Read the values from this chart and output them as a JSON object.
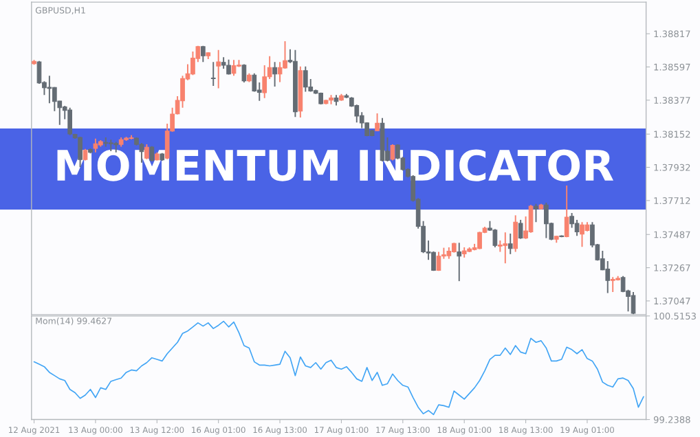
{
  "chart_data": [
    {
      "type": "candlestick",
      "title": "MOMENTUM INDICATOR",
      "annotations": [
        "GBPUSD,H1"
      ],
      "categories": [
        null,
        null,
        null,
        null,
        null,
        null,
        null,
        null,
        null,
        null,
        null,
        null,
        null,
        null,
        null,
        null,
        null,
        null,
        null,
        null,
        null,
        null,
        null,
        null,
        null,
        null,
        null,
        null,
        null,
        null,
        null,
        null,
        null,
        null,
        null,
        null,
        null,
        null,
        null,
        null,
        null,
        null,
        null,
        null,
        null,
        null,
        null,
        null,
        null,
        null,
        null,
        null,
        null,
        null,
        null,
        null,
        null,
        null,
        null,
        null,
        null,
        null,
        null,
        null,
        null,
        null,
        null,
        null,
        null,
        null,
        null,
        null,
        null,
        null,
        null,
        null,
        null,
        null,
        null,
        null,
        null,
        null,
        null,
        null,
        null,
        null,
        null,
        null,
        null,
        null,
        null,
        null,
        null,
        null,
        null,
        null,
        null,
        null,
        null,
        null,
        null,
        null,
        null,
        null,
        null,
        null,
        null,
        null,
        null,
        null,
        null,
        null,
        null,
        null,
        null,
        null,
        null,
        null,
        null,
        null
      ],
      "ohlc": [
        [
          1.38618,
          1.38643,
          1.38612,
          1.38634
        ],
        [
          1.38631,
          1.38637,
          1.38485,
          1.38491
        ],
        [
          1.38494,
          1.38502,
          1.38411,
          1.38459
        ],
        [
          1.38462,
          1.38539,
          1.38357,
          1.38455
        ],
        [
          1.38461,
          1.38464,
          1.38304,
          1.38368
        ],
        [
          1.38371,
          1.38373,
          1.38213,
          1.38327
        ],
        [
          1.38332,
          1.38339,
          1.38251,
          1.38309
        ],
        [
          1.38312,
          1.38327,
          1.38145,
          1.38153
        ],
        [
          1.3815,
          1.38154,
          1.38121,
          1.38127
        ],
        [
          1.3813,
          1.38135,
          1.37933,
          1.37983
        ],
        [
          1.37983,
          1.38054,
          1.37978,
          1.38044
        ],
        [
          1.3805,
          1.38057,
          1.38024,
          1.38031
        ],
        [
          1.38057,
          1.38122,
          1.38031,
          1.38088
        ],
        [
          1.3808,
          1.38112,
          1.38069,
          1.38103
        ],
        [
          1.38097,
          1.3813,
          1.38069,
          1.38091
        ],
        [
          1.38094,
          1.38115,
          1.38039,
          1.38088
        ],
        [
          1.3809,
          1.381,
          1.38031,
          1.38081
        ],
        [
          1.38084,
          1.3813,
          1.38069,
          1.38115
        ],
        [
          1.38115,
          1.38133,
          1.38107,
          1.38125
        ],
        [
          1.38124,
          1.38145,
          1.38118,
          1.38128
        ],
        [
          1.38125,
          1.3813,
          1.38077,
          1.38084
        ],
        [
          1.38084,
          1.38092,
          1.37963,
          1.38036
        ],
        [
          1.37993,
          1.38084,
          1.37986,
          1.38065
        ],
        [
          1.38066,
          1.38072,
          1.37971,
          1.37978
        ],
        [
          1.37981,
          1.38031,
          1.37978,
          1.38021
        ],
        [
          1.38021,
          1.38027,
          1.37975,
          1.37981
        ],
        [
          1.37993,
          1.38221,
          1.37986,
          1.38172
        ],
        [
          1.38172,
          1.38327,
          1.38168,
          1.38285
        ],
        [
          1.38286,
          1.38403,
          1.38282,
          1.38376
        ],
        [
          1.38373,
          1.38539,
          1.38327,
          1.3852
        ],
        [
          1.38517,
          1.38615,
          1.38509,
          1.38552
        ],
        [
          1.3855,
          1.38699,
          1.38543,
          1.38656
        ],
        [
          1.38653,
          1.38737,
          1.3863,
          1.38732
        ],
        [
          1.38732,
          1.38737,
          1.3863,
          1.38671
        ],
        [
          1.38671,
          1.38694,
          1.38649,
          1.38691
        ],
        [
          1.38524,
          1.3863,
          1.38471,
          1.3852
        ],
        [
          1.38603,
          1.38709,
          1.38456,
          1.38631
        ],
        [
          1.38627,
          1.38661,
          1.38585,
          1.38608
        ],
        [
          1.38608,
          1.38646,
          1.38547,
          1.3855
        ],
        [
          1.38555,
          1.38643,
          1.38539,
          1.38605
        ],
        [
          1.38603,
          1.38643,
          1.38597,
          1.38609
        ],
        [
          1.38609,
          1.38615,
          1.38494,
          1.38505
        ],
        [
          1.38505,
          1.38555,
          1.38497,
          1.38543
        ],
        [
          1.38543,
          1.38555,
          1.38433,
          1.38438
        ],
        [
          1.38444,
          1.38494,
          1.38373,
          1.38429
        ],
        [
          1.38426,
          1.38608,
          1.38391,
          1.38532
        ],
        [
          1.38532,
          1.38668,
          1.38517,
          1.38593
        ],
        [
          1.38593,
          1.3863,
          1.38467,
          1.3855
        ],
        [
          1.3855,
          1.3863,
          1.38497,
          1.38593
        ],
        [
          1.3859,
          1.38767,
          1.38585,
          1.38638
        ],
        [
          1.38641,
          1.38714,
          1.38623,
          1.38631
        ],
        [
          1.38634,
          1.38709,
          1.38266,
          1.383
        ],
        [
          1.38304,
          1.386,
          1.38262,
          1.38573
        ],
        [
          1.38573,
          1.386,
          1.38433,
          1.38464
        ],
        [
          1.38464,
          1.38517,
          1.38433,
          1.38438
        ],
        [
          1.38441,
          1.38446,
          1.38418,
          1.38423
        ],
        [
          1.38423,
          1.38427,
          1.38348,
          1.38353
        ],
        [
          1.38354,
          1.38379,
          1.3835,
          1.38376
        ],
        [
          1.38377,
          1.38411,
          1.3835,
          1.38392
        ],
        [
          1.38392,
          1.38411,
          1.38342,
          1.38368
        ],
        [
          1.38377,
          1.38418,
          1.38373,
          1.38406
        ],
        [
          1.38406,
          1.38418,
          1.38391,
          1.38395
        ],
        [
          1.38392,
          1.38397,
          1.38333,
          1.38338
        ],
        [
          1.38342,
          1.38347,
          1.38229,
          1.38271
        ],
        [
          1.38274,
          1.38297,
          1.38191,
          1.38226
        ],
        [
          1.38226,
          1.3823,
          1.38138,
          1.38142
        ],
        [
          1.38175,
          1.3818,
          1.38138,
          1.38142
        ],
        [
          1.38175,
          1.38289,
          1.38171,
          1.38224
        ],
        [
          1.38224,
          1.38259,
          1.37971,
          1.37978
        ],
        [
          1.38039,
          1.3813,
          1.37971,
          1.37978
        ],
        [
          1.37986,
          1.38084,
          1.37978,
          1.38077
        ],
        [
          1.3808,
          1.38084,
          1.37986,
          1.37993
        ],
        [
          1.37993,
          1.38001,
          1.3791,
          1.37918
        ],
        [
          1.37918,
          1.37925,
          1.37865,
          1.37872
        ],
        [
          1.37872,
          1.3788,
          1.37705,
          1.37713
        ],
        [
          1.3772,
          1.37728,
          1.37526,
          1.37541
        ],
        [
          1.37541,
          1.37576,
          1.37364,
          1.37372
        ],
        [
          1.37372,
          1.37447,
          1.37319,
          1.37364
        ],
        [
          1.37369,
          1.37375,
          1.37246,
          1.3725
        ],
        [
          1.3725,
          1.37372,
          1.37246,
          1.37344
        ],
        [
          1.37344,
          1.37399,
          1.37326,
          1.37352
        ],
        [
          1.37346,
          1.37402,
          1.37326,
          1.37376
        ],
        [
          1.37372,
          1.37432,
          1.37367,
          1.37428
        ],
        [
          1.37372,
          1.37432,
          1.37178,
          1.37344
        ],
        [
          1.37359,
          1.37402,
          1.37334,
          1.37379
        ],
        [
          1.37375,
          1.37402,
          1.3737,
          1.37391
        ],
        [
          1.37387,
          1.37425,
          1.37382,
          1.37399
        ],
        [
          1.37394,
          1.37505,
          1.3739,
          1.37501
        ],
        [
          1.37501,
          1.37538,
          1.37496,
          1.37529
        ],
        [
          1.37529,
          1.37576,
          1.37511,
          1.37516
        ],
        [
          1.37516,
          1.37523,
          1.37402,
          1.37414
        ],
        [
          1.3741,
          1.37447,
          1.37372,
          1.37417
        ],
        [
          1.37414,
          1.37501,
          1.37296,
          1.37425
        ],
        [
          1.37425,
          1.37493,
          1.37357,
          1.37394
        ],
        [
          1.37394,
          1.37614,
          1.37372,
          1.37569
        ],
        [
          1.37561,
          1.37584,
          1.37458,
          1.37463
        ],
        [
          1.37463,
          1.37607,
          1.37458,
          1.37511
        ],
        [
          1.37504,
          1.37683,
          1.37499,
          1.37675
        ],
        [
          1.37675,
          1.3769,
          1.37569,
          1.37657
        ],
        [
          1.37657,
          1.3769,
          1.37652,
          1.37683
        ],
        [
          1.37683,
          1.37698,
          1.37463,
          1.37558
        ],
        [
          1.37561,
          1.37566,
          1.3745,
          1.37455
        ],
        [
          1.37455,
          1.37478,
          1.37432,
          1.37475
        ],
        [
          1.37478,
          1.37481,
          1.37469,
          1.37473
        ],
        [
          1.37473,
          1.37811,
          1.37469,
          1.37602
        ],
        [
          1.37607,
          1.37629,
          1.37531,
          1.37558
        ],
        [
          1.37561,
          1.37584,
          1.37478,
          1.37504
        ],
        [
          1.3749,
          1.37569,
          1.37405,
          1.37551
        ],
        [
          1.37513,
          1.37569,
          1.37508,
          1.37551
        ],
        [
          1.37551,
          1.37569,
          1.37402,
          1.37417
        ],
        [
          1.3742,
          1.37425,
          1.37314,
          1.37319
        ],
        [
          1.37326,
          1.37379,
          1.3725,
          1.37253
        ],
        [
          1.37258,
          1.37311,
          1.37099,
          1.37182
        ],
        [
          1.37182,
          1.37205,
          1.37106,
          1.3719
        ],
        [
          1.37187,
          1.37212,
          1.37182,
          1.37197
        ],
        [
          1.37202,
          1.37212,
          1.37105,
          1.37109
        ],
        [
          1.37114,
          1.37121,
          1.36977,
          1.37076
        ],
        [
          1.37083,
          1.37106,
          1.36958,
          1.36965
        ],
        null,
        null
      ],
      "colors": [
        "#f8826e",
        "#646c74",
        "#646c74",
        "#646c74",
        "#646c74",
        "#646c74",
        "#646c74",
        "#646c74",
        "#646c74",
        "#646c74",
        "#f8826e",
        "#646c74",
        "#f8826e",
        "#f8826e",
        "#646c74",
        "#646c74",
        "#646c74",
        "#f8826e",
        "#f8826e",
        "#f8826e",
        "#646c74",
        "#646c74",
        "#f8826e",
        "#646c74",
        "#f8826e",
        "#646c74",
        "#f8826e",
        "#f8826e",
        "#f8826e",
        "#f8826e",
        "#f8826e",
        "#f8826e",
        "#f8826e",
        "#646c74",
        "#f8826e",
        "#646c74",
        "#f8826e",
        "#646c74",
        "#646c74",
        "#f8826e",
        "#f8826e",
        "#646c74",
        "#f8826e",
        "#646c74",
        "#646c74",
        "#f8826e",
        "#f8826e",
        "#646c74",
        "#f8826e",
        "#f8826e",
        "#646c74",
        "#646c74",
        "#f8826e",
        "#646c74",
        "#646c74",
        "#646c74",
        "#646c74",
        "#f8826e",
        "#f8826e",
        "#646c74",
        "#f8826e",
        "#646c74",
        "#646c74",
        "#646c74",
        "#646c74",
        "#646c74",
        "#646c74",
        "#f8826e",
        "#646c74",
        "#646c74",
        "#f8826e",
        "#646c74",
        "#646c74",
        "#646c74",
        "#646c74",
        "#646c74",
        "#646c74",
        "#646c74",
        "#646c74",
        "#f8826e",
        "#f8826e",
        "#f8826e",
        "#f8826e",
        "#646c74",
        "#f8826e",
        "#f8826e",
        "#f8826e",
        "#f8826e",
        "#f8826e",
        "#646c74",
        "#646c74",
        "#f8826e",
        "#f8826e",
        "#646c74",
        "#f8826e",
        "#646c74",
        "#f8826e",
        "#f8826e",
        "#646c74",
        "#f8826e",
        "#646c74",
        "#646c74",
        "#f8826e",
        "#646c74",
        "#f8826e",
        "#646c74",
        "#646c74",
        "#f8826e",
        "#f8826e",
        "#646c74",
        "#646c74",
        "#646c74",
        "#646c74",
        "#f8826e",
        "#f8826e",
        "#646c74",
        "#646c74",
        "#646c74",
        null,
        null
      ],
      "ylim": [
        1.36956,
        1.39026
      ],
      "yticks": [
        1.37047,
        1.37267,
        1.37487,
        1.37712,
        1.37932,
        1.38152,
        1.38377,
        1.38597,
        1.38817
      ],
      "tick_labels": "y"
    },
    {
      "type": "line",
      "annotations": [
        "Mom(14) 99.4627"
      ],
      "series": [
        {
          "color": "#42a5f5",
          "values": [
            99.95,
            99.92,
            99.89,
            99.82,
            99.78,
            99.74,
            99.72,
            99.61,
            99.57,
            99.5,
            99.54,
            99.61,
            99.51,
            99.63,
            99.61,
            99.71,
            99.73,
            99.75,
            99.82,
            99.85,
            99.84,
            99.9,
            99.94,
            100.0,
            99.98,
            99.96,
            100.05,
            100.12,
            100.19,
            100.3,
            100.33,
            100.38,
            100.43,
            100.39,
            100.43,
            100.36,
            100.4,
            100.45,
            100.38,
            100.44,
            100.31,
            100.15,
            100.12,
            99.95,
            99.91,
            99.91,
            99.9,
            99.91,
            99.92,
            100.08,
            100.0,
            99.78,
            100.01,
            99.9,
            99.88,
            99.94,
            99.86,
            99.94,
            99.97,
            99.88,
            99.86,
            99.89,
            99.82,
            99.74,
            99.71,
            99.88,
            99.72,
            99.82,
            99.66,
            99.68,
            99.8,
            99.72,
            99.66,
            99.64,
            99.51,
            99.39,
            99.31,
            99.35,
            99.3,
            99.42,
            99.41,
            99.39,
            99.59,
            99.54,
            99.49,
            99.56,
            99.63,
            99.72,
            99.84,
            99.98,
            100.03,
            100.03,
            100.12,
            100.04,
            100.15,
            100.07,
            100.05,
            100.24,
            100.19,
            100.21,
            100.12,
            99.96,
            99.96,
            99.98,
            100.13,
            100.1,
            100.05,
            100.1,
            99.99,
            99.96,
            99.86,
            99.7,
            99.66,
            99.64,
            99.74,
            99.75,
            99.72,
            99.62,
            99.39,
            99.52
          ]
        }
      ],
      "line_style": "solid",
      "ylim": [
        99.2388,
        100.5153
      ],
      "yticks": [
        99.2388,
        100.5153
      ],
      "categories": [
        "12 Aug 2021",
        null,
        null,
        null,
        null,
        null,
        null,
        null,
        null,
        null,
        null,
        null,
        "13 Aug 00:00",
        null,
        null,
        null,
        null,
        null,
        null,
        null,
        null,
        null,
        null,
        null,
        "13 Aug 12:00",
        null,
        null,
        null,
        null,
        null,
        null,
        null,
        null,
        null,
        null,
        null,
        "16 Aug 01:00",
        null,
        null,
        null,
        null,
        null,
        null,
        null,
        null,
        null,
        null,
        null,
        "16 Aug 13:00",
        null,
        null,
        null,
        null,
        null,
        null,
        null,
        null,
        null,
        null,
        null,
        "17 Aug 01:00",
        null,
        null,
        null,
        null,
        null,
        null,
        null,
        null,
        null,
        null,
        null,
        "17 Aug 13:00",
        null,
        null,
        null,
        null,
        null,
        null,
        null,
        null,
        null,
        null,
        null,
        "18 Aug 01:00",
        null,
        null,
        null,
        null,
        null,
        null,
        null,
        null,
        null,
        null,
        null,
        "18 Aug 13:00",
        null,
        null,
        null,
        null,
        null,
        null,
        null,
        null,
        null,
        null,
        null,
        "19 Aug 01:00",
        null,
        null,
        null,
        null,
        null,
        null,
        null,
        null,
        null,
        null,
        null
      ]
    }
  ]
}
